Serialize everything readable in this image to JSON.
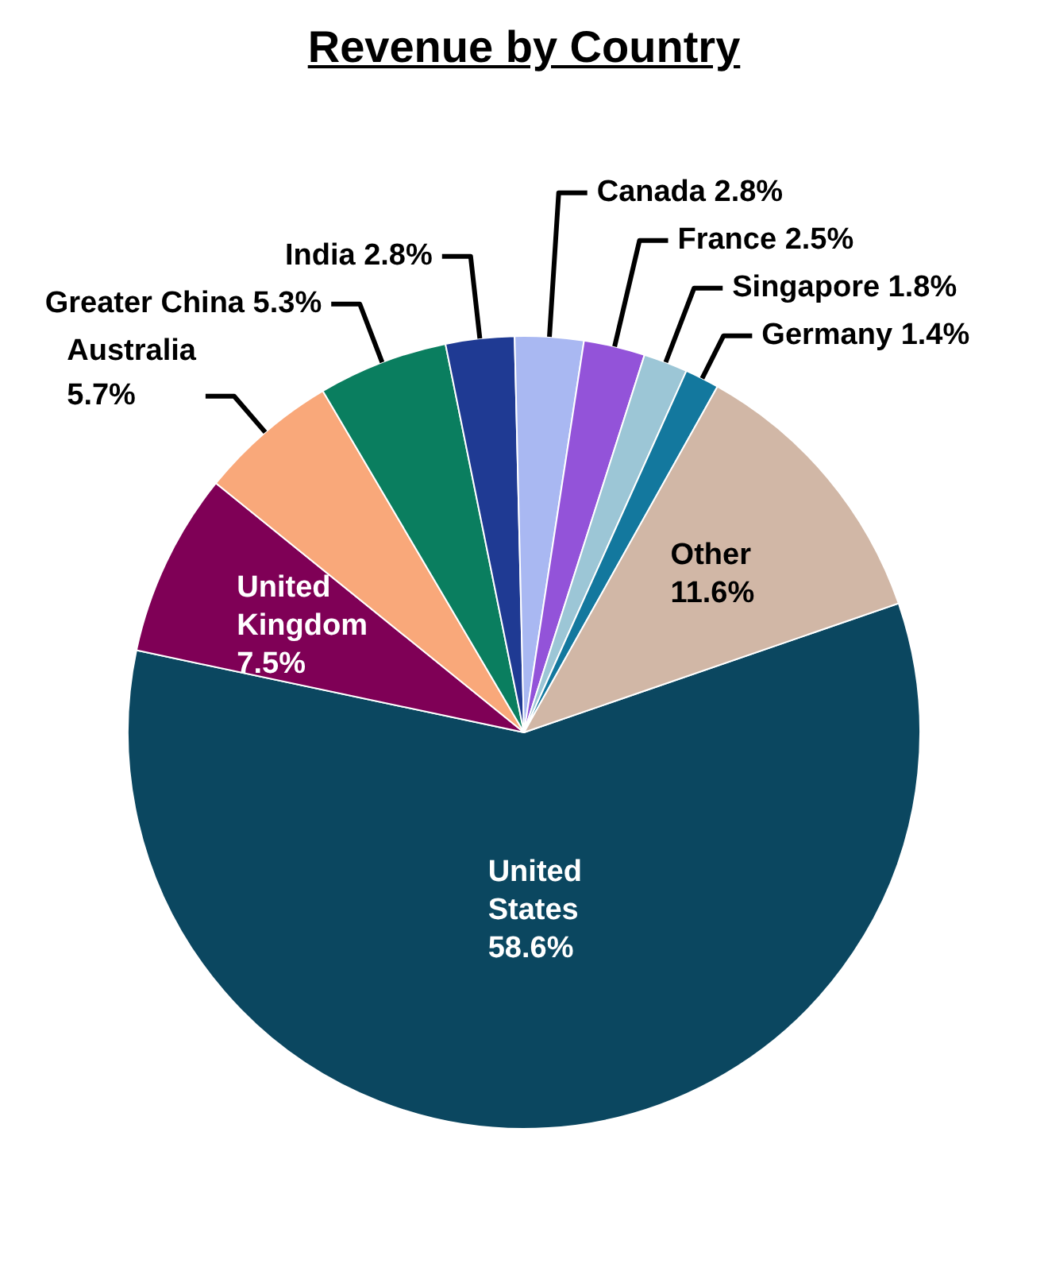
{
  "chart_data": {
    "type": "pie",
    "title": "Revenue by Country",
    "categories": [
      "United States",
      "United Kingdom",
      "Australia",
      "Greater China",
      "India",
      "Canada",
      "France",
      "Singapore",
      "Germany",
      "Other"
    ],
    "values": [
      58.6,
      7.5,
      5.7,
      5.3,
      2.8,
      2.8,
      2.5,
      1.8,
      1.4,
      11.6
    ],
    "value_labels": [
      "58.6%",
      "7.5%",
      "5.7%",
      "5.3%",
      "2.8%",
      "2.8%",
      "2.5%",
      "1.8%",
      "1.4%",
      "11.6%"
    ],
    "colors": [
      "#0b4760",
      "#7f0056",
      "#f9a87a",
      "#0a7e5f",
      "#1f3a93",
      "#a9b8f2",
      "#9353d9",
      "#9cc6d6",
      "#13789e",
      "#d1b7a6"
    ],
    "legend": false
  }
}
